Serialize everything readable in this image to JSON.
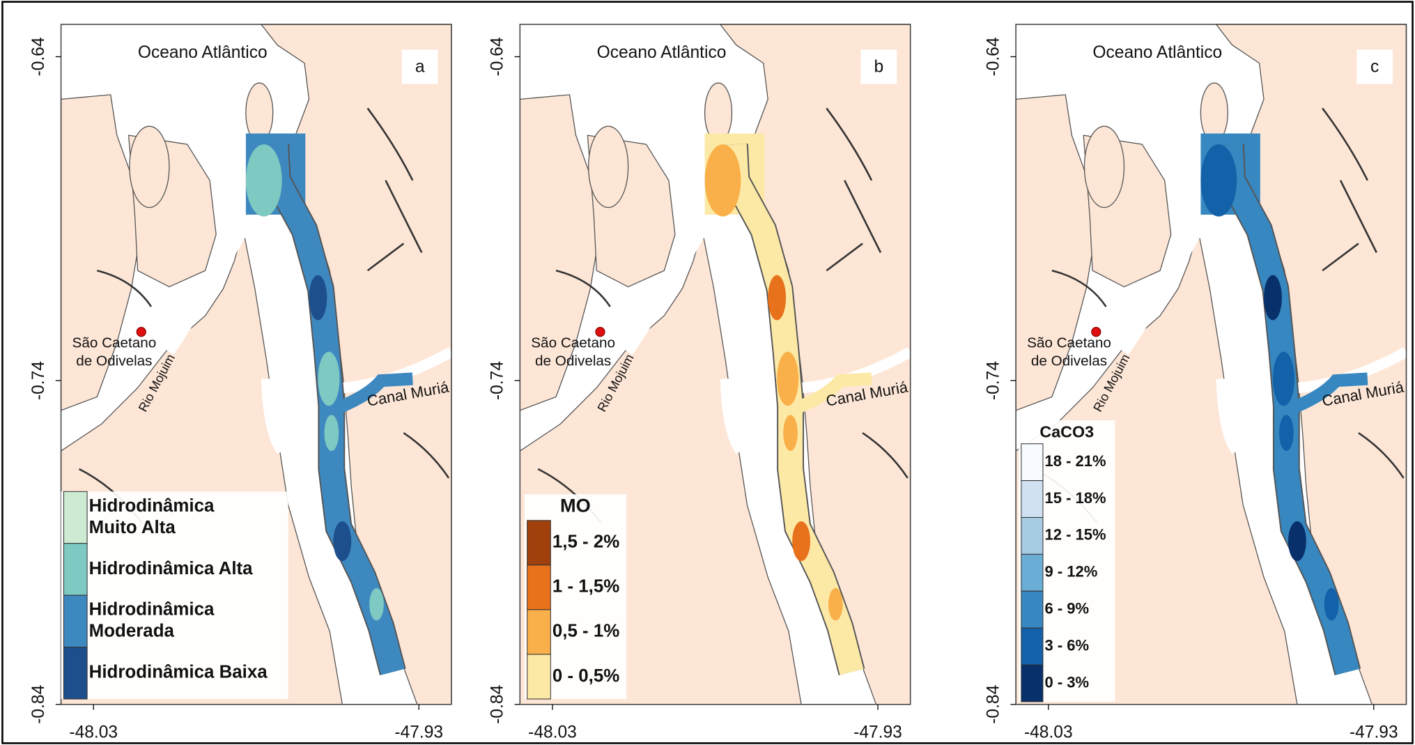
{
  "panels": [
    {
      "label": "a",
      "ocean": "Oceano Atlântico",
      "town": [
        "São Caetano",
        "de Odivelas"
      ],
      "rivers": [
        "Rio Mojuim",
        "Canal Muriá"
      ],
      "xlim": [
        -48.04,
        -47.92
      ],
      "xticks": [
        -48.03,
        -47.93
      ],
      "ylim": [
        -0.84,
        -0.63
      ],
      "yticks": [
        -0.64,
        -0.74,
        -0.84
      ],
      "legend": {
        "items": [
          {
            "label": [
              "Hidrodinâmica",
              "Muito Alta"
            ],
            "color": "#cdebd3"
          },
          {
            "label": [
              "Hidrodinâmica Alta"
            ],
            "color": "#7ec9c2"
          },
          {
            "label": [
              "Hidrodinâmica",
              "Moderada"
            ],
            "color": "#3e88c0"
          },
          {
            "label": [
              "Hidrodinâmica Baixa"
            ],
            "color": "#1d4f8c"
          }
        ]
      }
    },
    {
      "label": "b",
      "ocean": "Oceano Atlântico",
      "town": [
        "São Caetano",
        "de Odivelas"
      ],
      "rivers": [
        "Rio Mojuim",
        "Canal Muriá"
      ],
      "xlim": [
        -48.04,
        -47.92
      ],
      "xticks": [
        -48.03,
        -47.93
      ],
      "ylim": [
        -0.84,
        -0.63
      ],
      "yticks": [
        -0.64,
        -0.74,
        -0.84
      ],
      "legend": {
        "title": "MO",
        "items": [
          {
            "label": [
              "1,5 - 2%"
            ],
            "color": "#a0410d"
          },
          {
            "label": [
              "1 - 1,5%"
            ],
            "color": "#e8711c"
          },
          {
            "label": [
              "0,5 - 1%"
            ],
            "color": "#f9b04a"
          },
          {
            "label": [
              "0 - 0,5%"
            ],
            "color": "#fde9a6"
          }
        ]
      }
    },
    {
      "label": "c",
      "ocean": "Oceano Atlântico",
      "town": [
        "São Caetano",
        "de Odivelas"
      ],
      "rivers": [
        "Rio Mojuim",
        "Canal Muriá"
      ],
      "xlim": [
        -48.04,
        -47.92
      ],
      "xticks": [
        -48.03,
        -47.93
      ],
      "ylim": [
        -0.84,
        -0.63
      ],
      "yticks": [
        -0.64,
        -0.74,
        -0.84
      ],
      "legend": {
        "title": "CaCO3",
        "items": [
          {
            "label": [
              "18 - 21%"
            ],
            "color": "#f7fbff"
          },
          {
            "label": [
              "15 - 18%"
            ],
            "color": "#d0e1f2"
          },
          {
            "label": [
              "12 - 15%"
            ],
            "color": "#a6cbe3"
          },
          {
            "label": [
              "9 - 12%"
            ],
            "color": "#6aaed6"
          },
          {
            "label": [
              "6 - 9%"
            ],
            "color": "#3787c0"
          },
          {
            "label": [
              "3 - 6%"
            ],
            "color": "#1361a8"
          },
          {
            "label": [
              "0 - 3%"
            ],
            "color": "#08306b"
          }
        ]
      }
    }
  ]
}
